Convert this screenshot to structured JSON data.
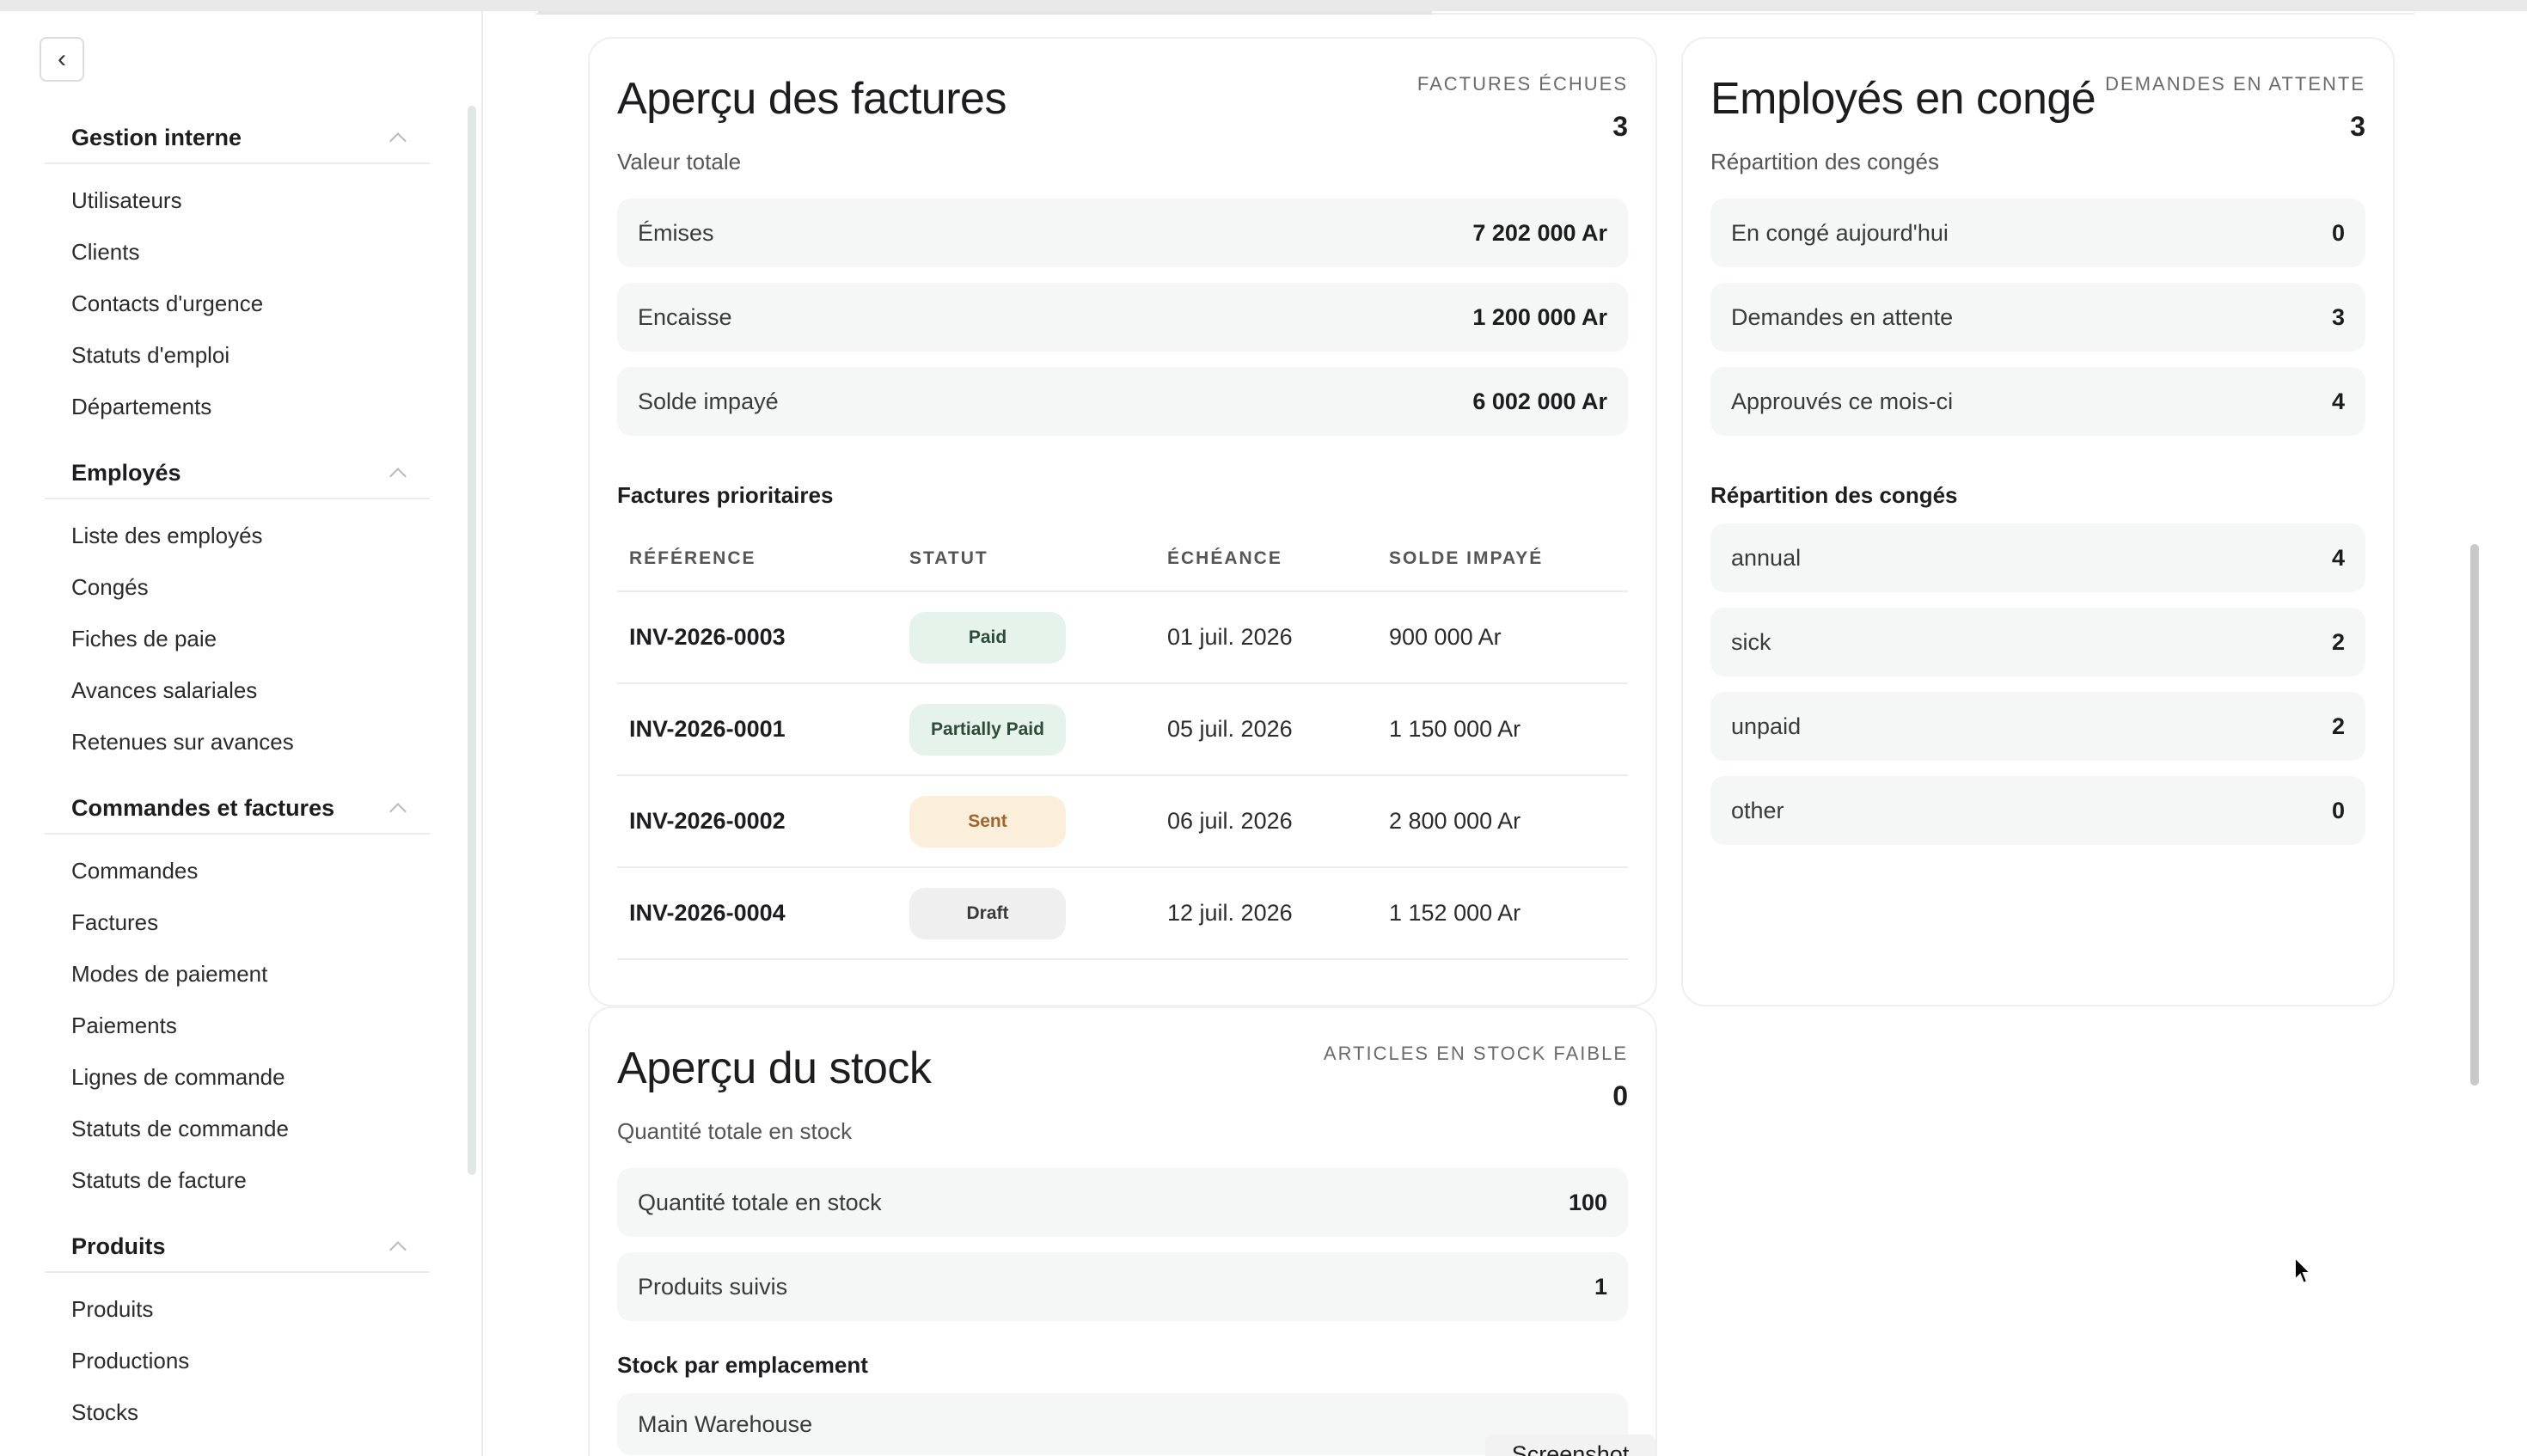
{
  "sidebar": {
    "groups": [
      {
        "title": "Gestion interne",
        "items": [
          "Utilisateurs",
          "Clients",
          "Contacts d'urgence",
          "Statuts d'emploi",
          "Départements"
        ]
      },
      {
        "title": "Employés",
        "items": [
          "Liste des employés",
          "Congés",
          "Fiches de paie",
          "Avances salariales",
          "Retenues sur avances"
        ]
      },
      {
        "title": "Commandes et factures",
        "items": [
          "Commandes",
          "Factures",
          "Modes de paiement",
          "Paiements",
          "Lignes de commande",
          "Statuts de commande",
          "Statuts de facture"
        ]
      },
      {
        "title": "Produits",
        "items": [
          "Produits",
          "Productions",
          "Stocks"
        ]
      }
    ]
  },
  "invoices": {
    "title": "Aperçu des factures",
    "subtitle": "Valeur totale",
    "kpi_label": "FACTURES ÉCHUES",
    "kpi_value": "3",
    "stats": [
      {
        "label": "Émises",
        "value": "7 202 000 Ar"
      },
      {
        "label": "Encaisse",
        "value": "1 200 000 Ar"
      },
      {
        "label": "Solde impayé",
        "value": "6 002 000 Ar"
      }
    ],
    "section": "Factures prioritaires",
    "columns": [
      "RÉFÉRENCE",
      "STATUT",
      "ÉCHÉANCE",
      "SOLDE IMPAYÉ"
    ],
    "rows": [
      {
        "ref": "INV-2026-0003",
        "status": "Paid",
        "status_bg": "#e6f3ea",
        "status_fg": "#2f4a37",
        "due": "01 juil. 2026",
        "balance": "900 000 Ar"
      },
      {
        "ref": "INV-2026-0001",
        "status": "Partially Paid",
        "status_bg": "#e6f3ea",
        "status_fg": "#2f4a37",
        "due": "05 juil. 2026",
        "balance": "1 150 000 Ar"
      },
      {
        "ref": "INV-2026-0002",
        "status": "Sent",
        "status_bg": "#fbeedb",
        "status_fg": "#a0652a",
        "due": "06 juil. 2026",
        "balance": "2 800 000 Ar"
      },
      {
        "ref": "INV-2026-0004",
        "status": "Draft",
        "status_bg": "#efefef",
        "status_fg": "#3a3a3a",
        "due": "12 juil. 2026",
        "balance": "1 152 000 Ar"
      }
    ]
  },
  "leave": {
    "title": "Employés en congé",
    "subtitle": "Répartition des congés",
    "kpi_label": "DEMANDES EN ATTENTE",
    "kpi_value": "3",
    "stats": [
      {
        "label": "En congé aujourd'hui",
        "value": "0"
      },
      {
        "label": "Demandes en attente",
        "value": "3"
      },
      {
        "label": "Approuvés ce mois-ci",
        "value": "4"
      }
    ],
    "section": "Répartition des congés",
    "breakdown": [
      {
        "label": "annual",
        "value": "4"
      },
      {
        "label": "sick",
        "value": "2"
      },
      {
        "label": "unpaid",
        "value": "2"
      },
      {
        "label": "other",
        "value": "0"
      }
    ]
  },
  "stock": {
    "title": "Aperçu du stock",
    "subtitle": "Quantité totale en stock",
    "kpi_label": "ARTICLES EN STOCK FAIBLE",
    "kpi_value": "0",
    "stats": [
      {
        "label": "Quantité totale en stock",
        "value": "100"
      },
      {
        "label": "Produits suivis",
        "value": "1"
      }
    ],
    "section": "Stock par emplacement",
    "locations": [
      {
        "label": "Main Warehouse"
      }
    ]
  },
  "tooltip": "Screenshot"
}
